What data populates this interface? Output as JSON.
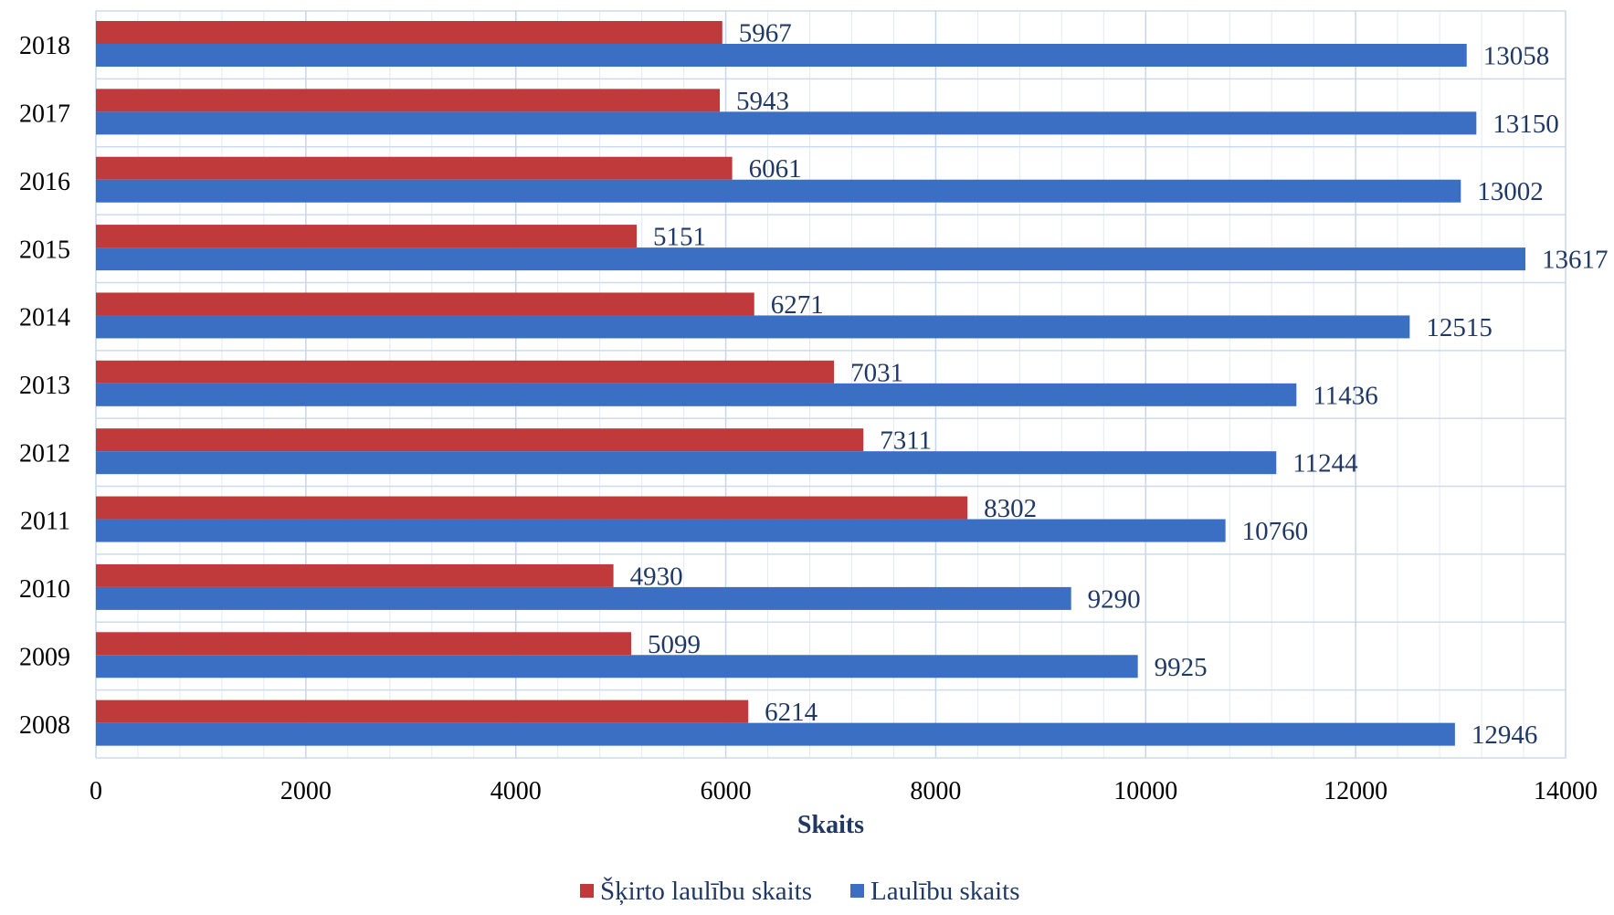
{
  "chart_data": {
    "type": "bar",
    "orientation": "horizontal",
    "categories": [
      "2018",
      "2017",
      "2016",
      "2015",
      "2014",
      "2013",
      "2012",
      "2011",
      "2010",
      "2009",
      "2008"
    ],
    "series": [
      {
        "name": "Šķirto laulību skaits",
        "color": "#c0393b",
        "values": [
          5967,
          5943,
          6061,
          5151,
          6271,
          7031,
          7311,
          8302,
          4930,
          5099,
          6214
        ]
      },
      {
        "name": "Laulību skaits",
        "color": "#3a6fc4",
        "values": [
          13058,
          13150,
          13002,
          13617,
          12515,
          11436,
          11244,
          10760,
          9290,
          9925,
          12946
        ]
      }
    ],
    "xlabel": "Skaits",
    "xlim": [
      0,
      14000
    ],
    "xticks": [
      0,
      2000,
      4000,
      6000,
      8000,
      10000,
      12000,
      14000
    ],
    "grid": true,
    "legend_position": "bottom"
  }
}
